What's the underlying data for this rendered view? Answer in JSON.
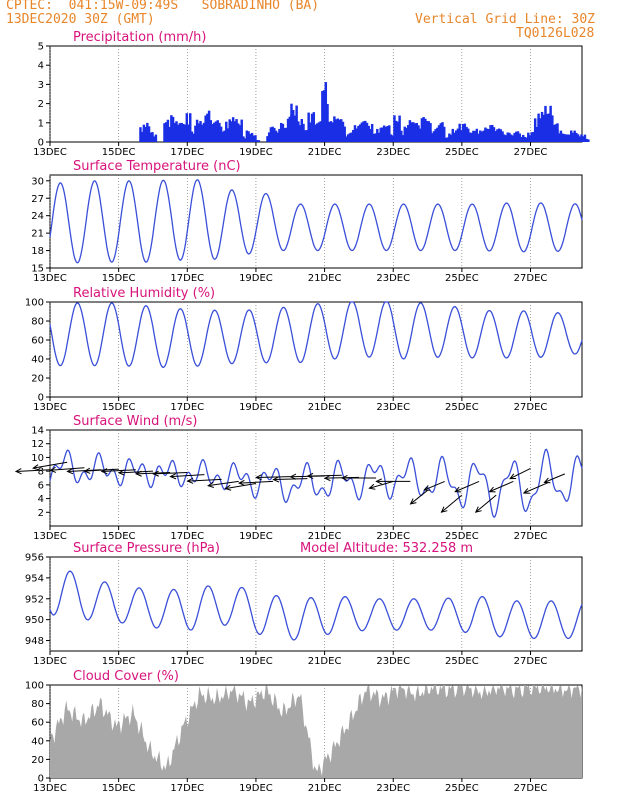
{
  "header": {
    "line1": "CPTEC:  041:15W-09:49S   SOBRADINHO (BA)",
    "line2": "13DEC2020 30Z (GMT)",
    "right1": "Vertical Grid Line: 30Z",
    "right2": "TQ0126L028"
  },
  "x_ticks": [
    "13DEC",
    "15DEC",
    "17DEC",
    "19DEC",
    "21DEC",
    "23DEC",
    "25DEC",
    "27DEC"
  ],
  "colors": {
    "line": "#3a4fd8",
    "bar": "#1a2ee6",
    "cloud": "#a8a8a8",
    "title": "#d8137b",
    "header": "#e8862a"
  },
  "chart_data": [
    {
      "type": "bar",
      "title": "Precipitation (mm/h)",
      "ylim": [
        0,
        5
      ],
      "yticks": [
        "0",
        "1",
        "2",
        "3",
        "4",
        "5"
      ],
      "x_unit": "days since 13DEC",
      "x": [
        5.2,
        5.4,
        5.6,
        5.8,
        6.6,
        6.8,
        7.0,
        7.2,
        7.4,
        7.6,
        7.8,
        8.0,
        8.2,
        8.4,
        8.6,
        8.8,
        9.0,
        9.2,
        9.4,
        9.6,
        9.8,
        10.0,
        10.2,
        10.4,
        10.6,
        10.8,
        11.0,
        11.2,
        11.4,
        11.6,
        11.8,
        12.0,
        12.6,
        12.8,
        13.0,
        13.2,
        13.4,
        13.6,
        13.8,
        14.0,
        14.2,
        14.4,
        14.6,
        14.8,
        15.0,
        15.2,
        15.4,
        15.6,
        15.8,
        16.0,
        16.2,
        16.4,
        16.6,
        16.8,
        17.0,
        17.2,
        17.4,
        17.6,
        17.8,
        18.0,
        18.2,
        18.4,
        18.6,
        18.8,
        19.0,
        19.2,
        19.4,
        19.6,
        19.8,
        20.0,
        20.2,
        20.4,
        20.6,
        20.8,
        21.0,
        21.2,
        21.4,
        21.6,
        21.8,
        22.0,
        22.2,
        22.4,
        22.6,
        22.8,
        23.0,
        23.2,
        23.4,
        23.6,
        23.8,
        24.0,
        24.2,
        24.4,
        24.6,
        24.8,
        25.0,
        25.2,
        25.4,
        25.6,
        25.8,
        26.0,
        26.2,
        26.4,
        26.6,
        26.8,
        27.0,
        27.2,
        27.4,
        27.6,
        27.8,
        28.0,
        28.2,
        28.4,
        28.6,
        28.8,
        29.0,
        29.2,
        29.4,
        29.6,
        29.8,
        30.0,
        30.2,
        30.4,
        30.6,
        30.8,
        31.0
      ],
      "values": [
        0.8,
        1.0,
        0.6,
        0.4,
        1.2,
        0.8,
        1.4,
        0.6,
        1.0,
        0.8,
        1.5,
        0.6,
        0.4,
        1.2,
        0.8,
        1.1,
        1.7,
        0.9,
        1.3,
        1.0,
        0.6,
        0.4,
        1.1,
        1.3,
        0.9,
        1.2,
        0.3,
        0.2,
        0.6,
        0.4,
        0.1,
        0.0,
        0.5,
        0.8,
        0.3,
        0.7,
        1.0,
        0.6,
        1.5,
        2.0,
        0.9,
        1.2,
        0.6,
        1.0,
        1.6,
        0.7,
        1.3,
        0.8,
        3.2,
        1.1,
        0.9,
        1.4,
        0.6,
        1.2,
        0.4,
        0.3,
        0.5,
        0.9,
        0.6,
        1.1,
        0.8,
        1.0,
        0.5,
        0.3,
        0.7,
        1.2,
        0.9,
        0.4,
        0.2,
        1.4,
        0.6,
        0.3,
        0.8,
        1.2,
        0.5,
        1.0,
        0.7,
        1.3,
        1.1,
        0.6,
        0.4,
        0.8,
        1.1,
        0.2,
        0.3,
        0.5,
        0.7,
        0.9,
        1.0,
        0.8,
        0.6,
        0.5,
        0.7,
        0.4,
        0.6,
        0.8,
        0.3,
        0.9,
        0.5,
        0.7,
        0.4,
        0.2,
        0.5,
        0.3,
        0.6,
        0.4,
        0.2,
        0.3,
        0.5,
        0.8,
        1.3,
        1.6,
        1.8,
        1.9,
        1.4,
        1.0,
        0.7,
        0.5,
        0.3,
        0.4,
        0.6,
        0.5,
        0.3,
        0.4,
        0.2
      ]
    },
    {
      "type": "line",
      "title": "Surface Temperature (nC)",
      "ylim": [
        15,
        31
      ],
      "yticks": [
        "15",
        "18",
        "21",
        "24",
        "27",
        "30"
      ],
      "x_unit": "days since 13DEC",
      "period": 1,
      "series": [
        {
          "mean": [
            22.5,
            23,
            23,
            23,
            23.5,
            22.5,
            23,
            22,
            22,
            22,
            22,
            22,
            22,
            22,
            22,
            22
          ],
          "amp": [
            7,
            7,
            7,
            7,
            7,
            6,
            5,
            4,
            4,
            4,
            4,
            4,
            4,
            4.2,
            4.2,
            4
          ],
          "phase": 0.05
        }
      ]
    },
    {
      "type": "line",
      "title": "Relative Humidity (%)",
      "ylim": [
        0,
        100
      ],
      "yticks": [
        "0",
        "20",
        "40",
        "60",
        "80",
        "100"
      ],
      "x_unit": "days since 13DEC",
      "series": [
        {
          "mean": [
            66,
            66,
            66,
            63,
            62,
            63,
            64,
            66,
            70,
            72,
            70,
            70,
            66,
            66,
            66,
            66
          ],
          "amp": [
            33,
            33,
            33,
            32,
            30,
            28,
            28,
            30,
            30,
            30,
            30,
            28,
            25,
            25,
            24,
            20
          ],
          "phase": 0.55
        }
      ]
    },
    {
      "type": "line",
      "title": "Surface Wind (m/s)",
      "ylim": [
        0,
        14
      ],
      "yticks": [
        "2",
        "4",
        "6",
        "8",
        "10",
        "12",
        "14"
      ],
      "x_unit": "days since 13DEC",
      "series": [
        {
          "mean": [
            8.5,
            8.2,
            8.0,
            7.8,
            7.5,
            7.2,
            6.5,
            6.0,
            6.5,
            7.0,
            7.0,
            6.5,
            6.0,
            5.5,
            6.5,
            7.0
          ],
          "amp": [
            2.0,
            1.5,
            1.2,
            1.0,
            1.0,
            1.2,
            1.5,
            2.0,
            2.0,
            2.0,
            2.0,
            2.5,
            3.0,
            3.5,
            3.5,
            2.5
          ],
          "phase": 0.2
        }
      ],
      "arrows": {
        "x": [
          0.0,
          0.5,
          1.0,
          1.5,
          2.0,
          2.5,
          3.0,
          3.5,
          4.0,
          4.5,
          5.0,
          5.5,
          6.0,
          6.5,
          7.0,
          7.5,
          8.0,
          8.5,
          9.0,
          9.5,
          10.0,
          10.5,
          11.0,
          11.5,
          12.0,
          12.5,
          13.0,
          13.5,
          14.0,
          14.5,
          15.0
        ],
        "y": [
          8.2,
          9.3,
          8.5,
          8.2,
          8.3,
          8.2,
          8.0,
          7.8,
          7.8,
          7.5,
          6.8,
          6.5,
          6.2,
          6.5,
          7.2,
          6.9,
          7.3,
          7.4,
          7.1,
          7.0,
          6.5,
          6.5,
          5.2,
          6.5,
          4.5,
          6.5,
          4.5,
          6.5,
          8.4,
          6.3,
          7.6
        ],
        "u": [
          -1,
          -1,
          -1,
          -1,
          -1,
          -1,
          -1,
          -1,
          -1,
          -1,
          -1,
          -0.9,
          -0.9,
          -1,
          -1,
          -1,
          -1,
          -1,
          -1,
          -1,
          -0.7,
          -1,
          -0.5,
          -0.6,
          -0.6,
          -0.7,
          -0.6,
          -0.7,
          -0.6,
          -0.7,
          -0.6
        ],
        "v": [
          0.1,
          0.35,
          0.15,
          0.1,
          0.12,
          0.1,
          0.1,
          0.08,
          0.08,
          0.12,
          0.1,
          0.25,
          0.3,
          0.1,
          0.05,
          0.05,
          0.05,
          0.05,
          0.05,
          0.0,
          0.4,
          0.0,
          0.8,
          0.5,
          1.0,
          0.6,
          1.0,
          0.6,
          0.6,
          0.6,
          0.5
        ]
      }
    },
    {
      "type": "line",
      "title": "Surface Pressure (hPa)",
      "subtitle": "Model Altitude: 532.258  m",
      "ylim": [
        947,
        956
      ],
      "yticks": [
        "948",
        "950",
        "952",
        "954",
        "956"
      ],
      "x_unit": "days since 13DEC",
      "series": [
        {
          "mean": [
            953,
            952,
            951.5,
            951,
            951,
            951.5,
            950.5,
            950,
            950.5,
            950.5,
            950.5,
            950.5,
            950.5,
            950,
            950,
            950
          ],
          "amp": [
            2.5,
            2,
            1.8,
            1.8,
            2,
            2,
            2,
            2,
            1.8,
            1.5,
            1.5,
            1.5,
            1.8,
            1.8,
            1.8,
            1.8
          ],
          "phase": 0.35
        }
      ]
    },
    {
      "type": "area",
      "title": "Cloud Cover (%)",
      "ylim": [
        0,
        100
      ],
      "yticks": [
        "0",
        "20",
        "40",
        "60",
        "80",
        "100"
      ],
      "x_unit": "days since 13DEC",
      "x": [
        0,
        0.5,
        1,
        1.5,
        2,
        2.5,
        3,
        3.5,
        4,
        4.5,
        5,
        5.5,
        6,
        6.5,
        7,
        7.5,
        8,
        8.5,
        9,
        9.5,
        10,
        10.5,
        11,
        11.5,
        12,
        12.5,
        13,
        13.5,
        14,
        14.5,
        15,
        15.5,
        16
      ],
      "values": [
        40,
        75,
        60,
        80,
        55,
        70,
        30,
        10,
        55,
        90,
        85,
        95,
        80,
        95,
        70,
        90,
        5,
        30,
        60,
        95,
        85,
        98,
        90,
        98,
        95,
        98,
        92,
        98,
        95,
        98,
        98,
        95,
        98
      ]
    }
  ]
}
